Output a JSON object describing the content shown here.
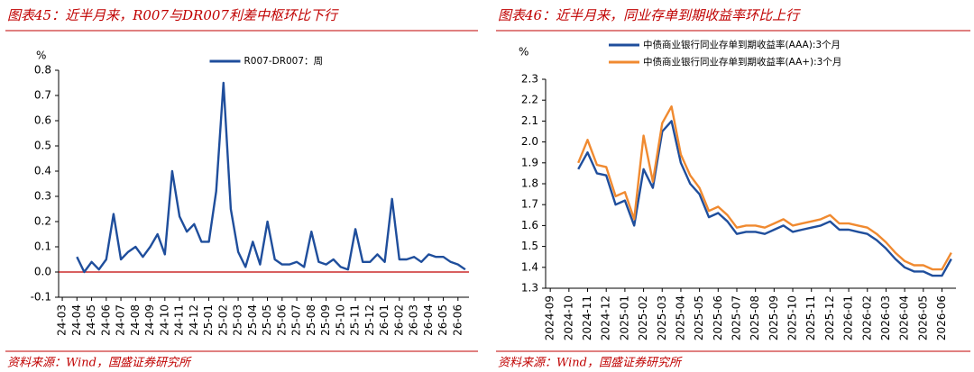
{
  "chart_data": [
    {
      "type": "line",
      "title": "图表45：近半月来，R007与DR007利差中枢环比下行",
      "y_label": "%",
      "source": "资料来源：Wind，国盛证券研究所",
      "categories": [
        "24-03",
        null,
        "24-04",
        null,
        "24-05",
        null,
        "24-06",
        null,
        "24-07",
        null,
        "24-08",
        null,
        "24-09",
        null,
        "24-10",
        null,
        "24-11",
        null,
        "24-12",
        null,
        "25-01",
        null,
        "25-02",
        null,
        "25-03",
        null,
        "25-04",
        null,
        "25-05",
        null,
        "25-06",
        null,
        "25-07",
        null,
        "25-08",
        null,
        "25-09",
        null,
        "25-10",
        null,
        "25-11",
        null,
        "25-12",
        null,
        "26-01",
        null,
        "26-02",
        null,
        "26-03",
        null,
        "26-04",
        null,
        "26-05",
        null,
        "26-06",
        null
      ],
      "series": [
        {
          "name": "R007-DR007：周",
          "color": "#1f4e9c",
          "values": [
            null,
            null,
            0.06,
            0.0,
            0.04,
            0.01,
            0.05,
            0.23,
            0.05,
            0.08,
            0.1,
            0.06,
            0.1,
            0.15,
            0.07,
            0.4,
            0.22,
            0.16,
            0.19,
            0.12,
            0.12,
            0.32,
            0.75,
            0.25,
            0.08,
            0.02,
            0.12,
            0.03,
            0.2,
            0.05,
            0.03,
            0.03,
            0.04,
            0.02,
            0.16,
            0.04,
            0.03,
            0.05,
            0.02,
            0.01,
            0.17,
            0.04,
            0.04,
            0.07,
            0.04,
            0.29,
            0.05,
            0.05,
            0.06,
            0.04,
            0.07,
            0.06,
            0.06,
            0.04,
            0.03,
            0.01
          ]
        }
      ],
      "ylim": [
        -0.1,
        0.8
      ],
      "yticks": [
        -0.1,
        {
          "value": 0,
          "label": "0.0"
        },
        0.1,
        0.2,
        0.3,
        0.4,
        0.5,
        0.6,
        0.7,
        0.8
      ],
      "hline": {
        "value": 0,
        "color": "#c00000"
      },
      "legend": "top"
    },
    {
      "type": "line",
      "title": "图表46：近半月来，同业存单到期收益率环比上行",
      "y_label": "%",
      "source": "资料来源：Wind，国盛证券研究所",
      "categories": [
        "2024-09",
        null,
        "2024-10",
        null,
        "2024-11",
        null,
        "2024-12",
        null,
        "2025-01",
        null,
        "2025-02",
        null,
        "2025-03",
        null,
        "2025-04",
        null,
        "2025-05",
        null,
        "2025-06",
        null,
        "2025-07",
        null,
        "2025-08",
        null,
        "2025-09",
        null,
        "2025-10",
        null,
        "2025-11",
        null,
        "2025-12",
        null,
        "2026-01",
        null,
        "2026-02",
        null,
        "2026-03",
        null,
        "2026-04",
        null,
        "2026-05",
        null,
        "2026-06",
        null
      ],
      "series": [
        {
          "name": "中债商业银行同业存单到期收益率(AAA):3个月",
          "color": "#1f4e9c",
          "values": [
            null,
            null,
            null,
            1.87,
            1.95,
            1.85,
            1.84,
            1.7,
            1.72,
            1.6,
            1.87,
            1.78,
            2.05,
            2.1,
            1.9,
            1.8,
            1.75,
            1.64,
            1.66,
            1.62,
            1.56,
            1.57,
            1.57,
            1.56,
            1.58,
            1.6,
            1.57,
            1.58,
            1.59,
            1.6,
            1.62,
            1.58,
            1.58,
            1.57,
            1.56,
            1.53,
            1.49,
            1.44,
            1.4,
            1.38,
            1.38,
            1.36,
            1.36,
            1.44
          ]
        },
        {
          "name": "中债商业银行同业存单到期收益率(AA+):3个月",
          "color": "#f08a30",
          "values": [
            null,
            null,
            null,
            1.9,
            2.01,
            1.89,
            1.88,
            1.74,
            1.76,
            1.63,
            2.03,
            1.81,
            2.09,
            2.17,
            1.94,
            1.84,
            1.78,
            1.67,
            1.69,
            1.65,
            1.59,
            1.6,
            1.6,
            1.59,
            1.61,
            1.63,
            1.6,
            1.61,
            1.62,
            1.63,
            1.65,
            1.61,
            1.61,
            1.6,
            1.59,
            1.56,
            1.52,
            1.47,
            1.43,
            1.41,
            1.41,
            1.39,
            1.39,
            1.47
          ]
        }
      ],
      "ylim": [
        1.3,
        2.3
      ],
      "yticks": [
        1.3,
        1.4,
        1.5,
        1.6,
        1.7,
        1.8,
        1.9,
        {
          "value": 2.0,
          "label": "2.0"
        },
        2.1,
        2.2,
        2.3
      ],
      "legend": "top"
    }
  ]
}
